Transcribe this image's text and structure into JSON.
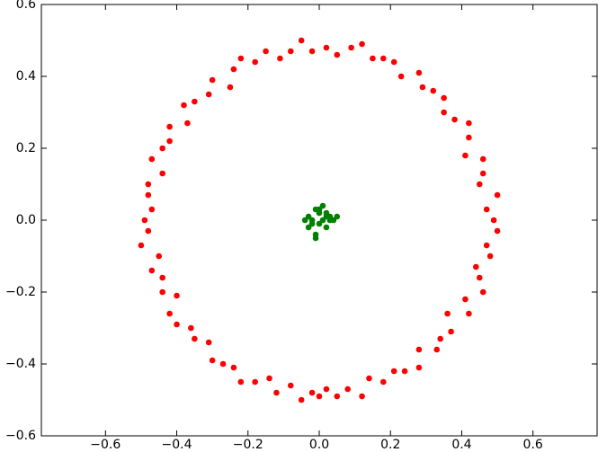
{
  "chart_data": {
    "type": "scatter",
    "xlim": [
      -0.78,
      0.78
    ],
    "ylim": [
      -0.6,
      0.6
    ],
    "xticks": [
      {
        "value": -0.6,
        "label": "−0.6"
      },
      {
        "value": -0.4,
        "label": "−0.4"
      },
      {
        "value": -0.2,
        "label": "−0.2"
      },
      {
        "value": 0,
        "label": "0.0"
      },
      0.2,
      0.4,
      0.6
    ],
    "yticks": [
      {
        "value": -0.6,
        "label": "−0.6"
      },
      {
        "value": -0.4,
        "label": "−0.4"
      },
      {
        "value": -0.2,
        "label": "−0.2"
      },
      {
        "value": 0,
        "label": "0.0"
      },
      0.2,
      0.4,
      0.6
    ],
    "grid": false,
    "series": [
      {
        "color": "#ff0000",
        "x": [
          0.49,
          0.47,
          0.5,
          0.45,
          0.46,
          0.46,
          0.41,
          0.42,
          0.42,
          0.38,
          0.35,
          0.35,
          0.32,
          0.29,
          0.28,
          0.23,
          0.21,
          0.18,
          0.15,
          0.12,
          0.09,
          0.05,
          0.02,
          -0.02,
          -0.05,
          -0.08,
          -0.11,
          -0.15,
          -0.18,
          -0.22,
          -0.24,
          -0.25,
          -0.3,
          -0.31,
          -0.35,
          -0.38,
          -0.37,
          -0.42,
          -0.42,
          -0.44,
          -0.47,
          -0.44,
          -0.48,
          -0.48,
          -0.47,
          -0.49,
          -0.48,
          -0.5,
          -0.45,
          -0.47,
          -0.44,
          -0.44,
          -0.4,
          -0.42,
          -0.4,
          -0.36,
          -0.35,
          -0.31,
          -0.3,
          -0.27,
          -0.24,
          -0.22,
          -0.18,
          -0.14,
          -0.12,
          -0.08,
          -0.05,
          -0.02,
          0.0,
          0.02,
          0.05,
          0.08,
          0.12,
          0.14,
          0.18,
          0.21,
          0.24,
          0.28,
          0.28,
          0.33,
          0.34,
          0.37,
          0.36,
          0.42,
          0.41,
          0.46,
          0.45,
          0.44,
          0.48,
          0.47,
          0.5
        ],
        "y": [
          0.0,
          0.03,
          0.07,
          0.1,
          0.13,
          0.17,
          0.18,
          0.23,
          0.27,
          0.28,
          0.3,
          0.34,
          0.36,
          0.37,
          0.41,
          0.4,
          0.44,
          0.45,
          0.45,
          0.49,
          0.48,
          0.46,
          0.48,
          0.47,
          0.5,
          0.47,
          0.45,
          0.47,
          0.44,
          0.45,
          0.42,
          0.37,
          0.39,
          0.35,
          0.33,
          0.32,
          0.27,
          0.26,
          0.22,
          0.2,
          0.17,
          0.13,
          0.1,
          0.07,
          0.03,
          0.0,
          -0.03,
          -0.07,
          -0.1,
          -0.14,
          -0.16,
          -0.2,
          -0.21,
          -0.26,
          -0.29,
          -0.3,
          -0.33,
          -0.34,
          -0.39,
          -0.4,
          -0.41,
          -0.45,
          -0.45,
          -0.44,
          -0.48,
          -0.46,
          -0.5,
          -0.48,
          -0.49,
          -0.47,
          -0.49,
          -0.47,
          -0.49,
          -0.44,
          -0.45,
          -0.42,
          -0.42,
          -0.41,
          -0.36,
          -0.36,
          -0.33,
          -0.31,
          -0.26,
          -0.26,
          -0.22,
          -0.2,
          -0.16,
          -0.13,
          -0.1,
          -0.07,
          -0.03
        ]
      },
      {
        "color": "#008000",
        "x": [
          -0.04,
          -0.03,
          -0.02,
          -0.01,
          0.0,
          0.01,
          0.02,
          0.03,
          0.05,
          -0.03,
          0.0,
          0.02,
          -0.01,
          0.01,
          0.04,
          -0.02,
          0.0,
          -0.01,
          0.02,
          0.03
        ],
        "y": [
          0.0,
          0.01,
          -0.01,
          0.03,
          0.02,
          0.0,
          0.01,
          0.0,
          0.01,
          -0.02,
          -0.01,
          0.02,
          -0.05,
          0.04,
          0.0,
          0.0,
          0.03,
          -0.04,
          -0.02,
          0.01
        ]
      }
    ]
  }
}
